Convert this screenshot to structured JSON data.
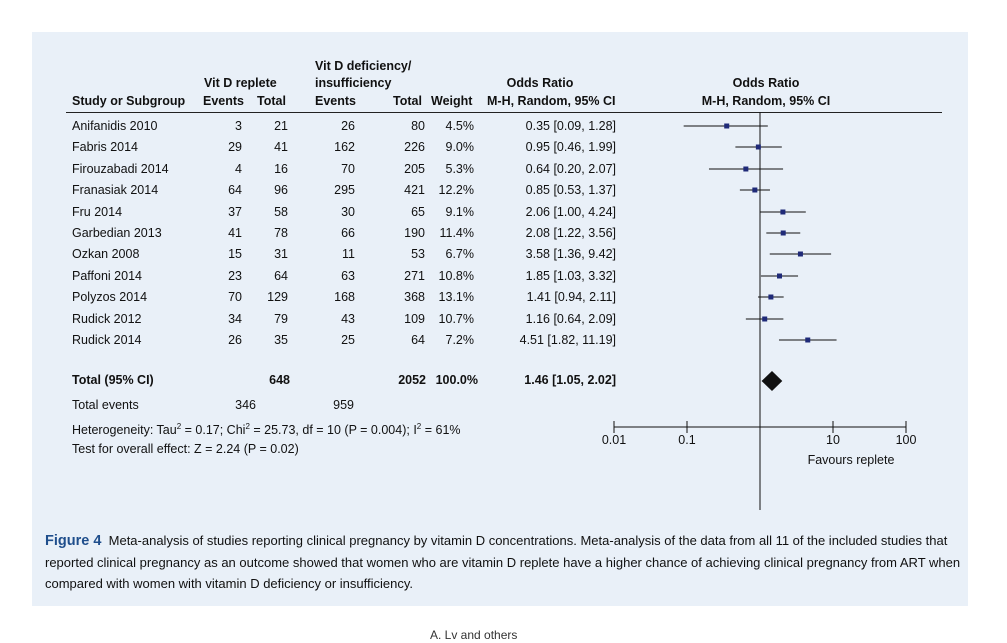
{
  "colors": {
    "panel_bg": "#e9f0f8",
    "marker": "#1f2a78",
    "diamond": "#111111",
    "figure_label": "#1f4e8c"
  },
  "table": {
    "header": {
      "group_replete": "Vit D replete",
      "group_deficient_1": "Vit D deficiency/",
      "group_deficient_2": "insufficiency",
      "odds_ratio": "Odds Ratio",
      "study": "Study or Subgroup",
      "events_1": "Events",
      "total_1": "Total",
      "events_2": "Events",
      "total_2": "Total",
      "weight": "Weight",
      "method": "M-H, Random, 95% CI",
      "plot_title": "Odds Ratio",
      "plot_method": "M-H, Random, 95% CI"
    },
    "rows": [
      {
        "study": "Anifanidis 2010",
        "events_1": "3",
        "total_1": "21",
        "events_2": "26",
        "total_2": "80",
        "weight": "4.5%",
        "ci": "0.35 [0.09, 1.28]"
      },
      {
        "study": "Fabris 2014",
        "events_1": "29",
        "total_1": "41",
        "events_2": "162",
        "total_2": "226",
        "weight": "9.0%",
        "ci": "0.95 [0.46, 1.99]"
      },
      {
        "study": "Firouzabadi 2014",
        "events_1": "4",
        "total_1": "16",
        "events_2": "70",
        "total_2": "205",
        "weight": "5.3%",
        "ci": "0.64 [0.20, 2.07]"
      },
      {
        "study": "Franasiak 2014",
        "events_1": "64",
        "total_1": "96",
        "events_2": "295",
        "total_2": "421",
        "weight": "12.2%",
        "ci": "0.85 [0.53, 1.37]"
      },
      {
        "study": "Fru 2014",
        "events_1": "37",
        "total_1": "58",
        "events_2": "30",
        "total_2": "65",
        "weight": "9.1%",
        "ci": "2.06 [1.00, 4.24]"
      },
      {
        "study": "Garbedian 2013",
        "events_1": "41",
        "total_1": "78",
        "events_2": "66",
        "total_2": "190",
        "weight": "11.4%",
        "ci": "2.08 [1.22, 3.56]"
      },
      {
        "study": "Ozkan 2008",
        "events_1": "15",
        "total_1": "31",
        "events_2": "11",
        "total_2": "53",
        "weight": "6.7%",
        "ci": "3.58 [1.36, 9.42]"
      },
      {
        "study": "Paffoni 2014",
        "events_1": "23",
        "total_1": "64",
        "events_2": "63",
        "total_2": "271",
        "weight": "10.8%",
        "ci": "1.85 [1.03, 3.32]"
      },
      {
        "study": "Polyzos 2014",
        "events_1": "70",
        "total_1": "129",
        "events_2": "168",
        "total_2": "368",
        "weight": "13.1%",
        "ci": "1.41 [0.94, 2.11]"
      },
      {
        "study": "Rudick 2012",
        "events_1": "34",
        "total_1": "79",
        "events_2": "43",
        "total_2": "109",
        "weight": "10.7%",
        "ci": "1.16 [0.64, 2.09]"
      },
      {
        "study": "Rudick 2014",
        "events_1": "26",
        "total_1": "35",
        "events_2": "25",
        "total_2": "64",
        "weight": "7.2%",
        "ci": "4.51 [1.82, 11.19]"
      }
    ],
    "total": {
      "label": "Total (95% CI)",
      "total_1": "648",
      "total_2": "2052",
      "weight": "100.0%",
      "ci": "1.46 [1.05, 2.02]"
    },
    "total_events": {
      "label": "Total events",
      "events_1": "346",
      "events_2": "959"
    },
    "heterogeneity": {
      "prefix": "Heterogeneity: Tau",
      "tau_sup": "2",
      "tau_val": " = 0.17; Chi",
      "chi_sup": "2",
      "chi_val": " = 25.73, df = 10 (P = 0.004); I",
      "i_sup": "2",
      "i_val": " = 61%"
    },
    "overall_effect": "Test for overall effect: Z = 2.24 (P = 0.02)"
  },
  "chart_data": {
    "type": "forest",
    "scale": "log",
    "xlim": [
      0.01,
      100
    ],
    "ticks": [
      0.01,
      0.1,
      10,
      100
    ],
    "tick_labels": [
      "0.01",
      "0.1",
      "10",
      "100"
    ],
    "reference_line": 1,
    "xlabel_right": "Favours replete",
    "studies": [
      {
        "name": "Anifanidis 2010",
        "or": 0.35,
        "lo": 0.09,
        "hi": 1.28,
        "weight": 4.5
      },
      {
        "name": "Fabris 2014",
        "or": 0.95,
        "lo": 0.46,
        "hi": 1.99,
        "weight": 9.0
      },
      {
        "name": "Firouzabadi 2014",
        "or": 0.64,
        "lo": 0.2,
        "hi": 2.07,
        "weight": 5.3
      },
      {
        "name": "Franasiak 2014",
        "or": 0.85,
        "lo": 0.53,
        "hi": 1.37,
        "weight": 12.2
      },
      {
        "name": "Fru 2014",
        "or": 2.06,
        "lo": 1.0,
        "hi": 4.24,
        "weight": 9.1
      },
      {
        "name": "Garbedian 2013",
        "or": 2.08,
        "lo": 1.22,
        "hi": 3.56,
        "weight": 11.4
      },
      {
        "name": "Ozkan 2008",
        "or": 3.58,
        "lo": 1.36,
        "hi": 9.42,
        "weight": 6.7
      },
      {
        "name": "Paffoni 2014",
        "or": 1.85,
        "lo": 1.03,
        "hi": 3.32,
        "weight": 10.8
      },
      {
        "name": "Polyzos 2014",
        "or": 1.41,
        "lo": 0.94,
        "hi": 2.11,
        "weight": 13.1
      },
      {
        "name": "Rudick 2012",
        "or": 1.16,
        "lo": 0.64,
        "hi": 2.09,
        "weight": 10.7
      },
      {
        "name": "Rudick 2014",
        "or": 4.51,
        "lo": 1.82,
        "hi": 11.19,
        "weight": 7.2
      }
    ],
    "pooled": {
      "or": 1.46,
      "lo": 1.05,
      "hi": 2.02
    }
  },
  "caption": {
    "label": "Figure 4",
    "text": "Meta-analysis of studies reporting clinical pregnancy by vitamin D concentrations. Meta-analysis of the data from all 11 of the included studies that reported clinical pregnancy as an outcome showed that women who are vitamin D replete have a higher chance of achieving clinical pregnancy from ART when compared with women with vitamin D deficiency or insufficiency."
  },
  "footer": "A. Lv and others"
}
